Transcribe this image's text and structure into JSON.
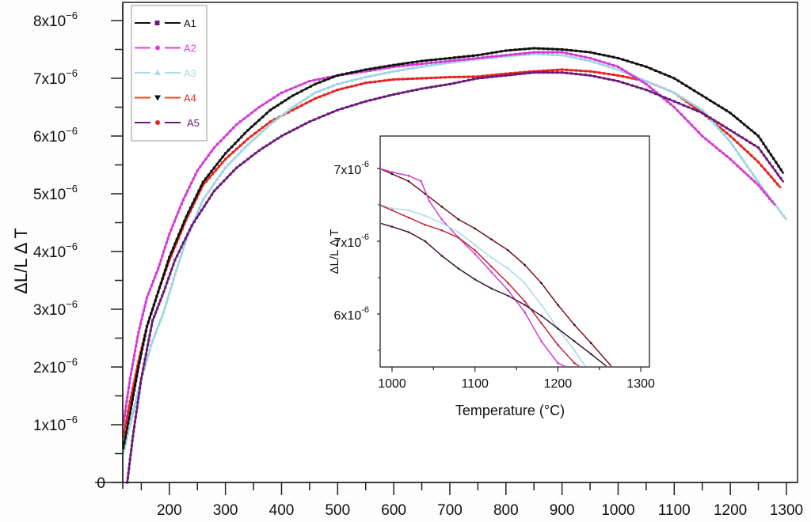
{
  "chart_data": [
    {
      "type": "line",
      "title": "",
      "xlabel": "",
      "ylabel": "ΔL/L Δ T",
      "xlim": [
        117,
        1310
      ],
      "ylim": [
        0,
        8.3
      ],
      "y_unit_scale": "x10^-6",
      "grid": false,
      "legend_position": "top-left",
      "xticks": [
        200,
        300,
        400,
        500,
        600,
        700,
        800,
        900,
        1000,
        1100,
        1200,
        1300
      ],
      "xtick_labels": [
        "200",
        "300",
        "400",
        "500",
        "600",
        "700",
        "800",
        "900",
        "1000",
        "1100",
        "1200",
        "1300"
      ],
      "yticks": [
        0,
        1,
        2,
        3,
        4,
        5,
        6,
        7,
        8
      ],
      "ytick_labels": [
        {
          "base": "0",
          "exp": ""
        },
        {
          "base": "1x10",
          "exp": "−6"
        },
        {
          "base": "2x10",
          "exp": "−6"
        },
        {
          "base": "3x10",
          "exp": "−6"
        },
        {
          "base": "4x10",
          "exp": "−6"
        },
        {
          "base": "5x10",
          "exp": "−6"
        },
        {
          "base": "6x10",
          "exp": "−6"
        },
        {
          "base": "7x10",
          "exp": "−6"
        },
        {
          "base": "8x10",
          "exp": "−6"
        }
      ],
      "series": [
        {
          "name": "A1",
          "line_color": "#111111",
          "marker_color": "#6a1b7a",
          "marker": "square",
          "curve_color": "#6a1b7a",
          "x": [
            125,
            135,
            150,
            170,
            190,
            210,
            240,
            280,
            320,
            360,
            400,
            450,
            500,
            550,
            600,
            650,
            700,
            750,
            800,
            850,
            900,
            950,
            1000,
            1050,
            1100,
            1150,
            1200,
            1250,
            1295
          ],
          "values": [
            0,
            0.8,
            1.8,
            2.8,
            3.3,
            3.85,
            4.45,
            5.05,
            5.45,
            5.75,
            6.0,
            6.25,
            6.45,
            6.6,
            6.72,
            6.82,
            6.9,
            7.0,
            7.05,
            7.1,
            7.1,
            7.05,
            6.95,
            6.8,
            6.6,
            6.4,
            6.1,
            5.8,
            5.2
          ]
        },
        {
          "name": "A2",
          "line_color": "#e040e0",
          "marker_color": "#e040e0",
          "marker": "dot",
          "curve_color": "#d63ad6",
          "x": [
            118,
            130,
            145,
            160,
            180,
            200,
            225,
            250,
            280,
            320,
            360,
            400,
            450,
            500,
            550,
            600,
            650,
            700,
            750,
            800,
            850,
            900,
            950,
            1000,
            1050,
            1100,
            1150,
            1200,
            1250,
            1280
          ],
          "values": [
            1.0,
            1.8,
            2.6,
            3.2,
            3.7,
            4.3,
            4.9,
            5.4,
            5.8,
            6.2,
            6.5,
            6.75,
            6.95,
            7.05,
            7.12,
            7.2,
            7.25,
            7.3,
            7.35,
            7.4,
            7.45,
            7.45,
            7.35,
            7.2,
            6.9,
            6.5,
            6.0,
            5.6,
            5.15,
            4.8
          ]
        },
        {
          "name": "A3",
          "line_color": "#a8dbe6",
          "marker_color": "#a8dbe6",
          "marker": "triangle",
          "curve_color": "#9fd4e2",
          "x": [
            118,
            130,
            150,
            170,
            190,
            210,
            230,
            260,
            300,
            340,
            380,
            420,
            460,
            500,
            550,
            600,
            650,
            700,
            750,
            800,
            850,
            900,
            950,
            1000,
            1050,
            1100,
            1150,
            1200,
            1250,
            1300
          ],
          "values": [
            0.5,
            1.0,
            1.8,
            2.45,
            2.95,
            3.6,
            4.2,
            4.9,
            5.45,
            5.85,
            6.2,
            6.5,
            6.75,
            6.9,
            7.02,
            7.12,
            7.2,
            7.27,
            7.33,
            7.38,
            7.42,
            7.4,
            7.3,
            7.15,
            6.95,
            6.75,
            6.45,
            5.9,
            5.2,
            4.55
          ]
        },
        {
          "name": "A4",
          "line_color": "#e8452d",
          "marker_color": "#111111",
          "marker": "triangle-down",
          "curve_color": "#111111",
          "x": [
            118,
            130,
            145,
            160,
            180,
            200,
            230,
            260,
            300,
            340,
            380,
            420,
            460,
            500,
            550,
            600,
            650,
            700,
            750,
            800,
            850,
            900,
            950,
            1000,
            1050,
            1100,
            1150,
            1200,
            1250,
            1295
          ],
          "values": [
            0.6,
            1.2,
            2.0,
            2.7,
            3.3,
            3.9,
            4.6,
            5.2,
            5.7,
            6.1,
            6.45,
            6.7,
            6.9,
            7.05,
            7.15,
            7.23,
            7.3,
            7.35,
            7.4,
            7.48,
            7.52,
            7.5,
            7.45,
            7.35,
            7.2,
            7.0,
            6.7,
            6.4,
            6.0,
            5.35
          ]
        },
        {
          "name": "A5",
          "line_color": "#6a1b7a",
          "marker_color": "#e8231e",
          "marker": "dot",
          "curve_color": "#e8231e",
          "x": [
            118,
            130,
            145,
            160,
            180,
            200,
            230,
            260,
            300,
            340,
            380,
            420,
            460,
            500,
            550,
            600,
            650,
            700,
            750,
            800,
            850,
            900,
            950,
            1000,
            1050,
            1100,
            1150,
            1200,
            1250,
            1290
          ],
          "values": [
            0.8,
            1.4,
            2.1,
            2.7,
            3.3,
            3.85,
            4.55,
            5.15,
            5.6,
            5.95,
            6.25,
            6.45,
            6.65,
            6.8,
            6.92,
            6.98,
            7.0,
            7.02,
            7.03,
            7.08,
            7.12,
            7.15,
            7.12,
            7.05,
            6.95,
            6.75,
            6.4,
            6.0,
            5.55,
            5.1
          ]
        }
      ]
    },
    {
      "type": "line",
      "title": "",
      "xlabel": "Temperature (°C)",
      "ylabel": "ΔL/L Δ T",
      "xlim": [
        985,
        1310
      ],
      "grid": false,
      "xticks": [
        1000,
        1100,
        1200,
        1300
      ],
      "xtick_labels": [
        "1000",
        "1100",
        "1200",
        "1300"
      ],
      "ytick_labels": [
        {
          "base": "7x10",
          "exp": "-6"
        },
        {
          "base": "7x10",
          "exp": "-6"
        },
        {
          "base": "6x10",
          "exp": "-6"
        }
      ],
      "series": [
        {
          "name": "A4",
          "curve_color": "#7a1020",
          "marker_color": "#111111",
          "x": [
            985,
            1000,
            1020,
            1040,
            1060,
            1080,
            1100,
            1120,
            1140,
            1160,
            1180,
            1200,
            1220,
            1240,
            1267
          ],
          "values": [
            1.0,
            0.97,
            0.93,
            0.86,
            0.79,
            0.72,
            0.67,
            0.61,
            0.55,
            0.47,
            0.37,
            0.25,
            0.14,
            0.04,
            -0.1
          ]
        },
        {
          "name": "A2",
          "curve_color": "#d63ad6",
          "marker_color": "#d63ad6",
          "x": [
            985,
            1000,
            1020,
            1035,
            1045,
            1060,
            1080,
            1100,
            1120,
            1140,
            1160,
            1180,
            1200,
            1215
          ],
          "values": [
            1.0,
            0.98,
            0.96,
            0.93,
            0.82,
            0.72,
            0.62,
            0.53,
            0.43,
            0.33,
            0.21,
            0.05,
            -0.07,
            -0.1
          ]
        },
        {
          "name": "A3",
          "curve_color": "#a8dbe6",
          "marker_color": "#a8dbe6",
          "x": [
            985,
            1000,
            1020,
            1040,
            1060,
            1080,
            1100,
            1120,
            1140,
            1160,
            1180,
            1200,
            1220,
            1235
          ],
          "values": [
            0.8,
            0.78,
            0.77,
            0.74,
            0.7,
            0.65,
            0.58,
            0.51,
            0.45,
            0.37,
            0.25,
            0.12,
            0.0,
            -0.1
          ]
        },
        {
          "name": "A5",
          "curve_color": "#c0263a",
          "marker_color": "#c0263a",
          "x": [
            985,
            1000,
            1020,
            1040,
            1060,
            1080,
            1100,
            1120,
            1140,
            1160,
            1180,
            1200,
            1220,
            1230
          ],
          "values": [
            0.8,
            0.77,
            0.73,
            0.69,
            0.66,
            0.62,
            0.55,
            0.46,
            0.37,
            0.27,
            0.15,
            0.03,
            -0.07,
            -0.1
          ]
        },
        {
          "name": "A1",
          "curve_color": "#3a1a3a",
          "marker_color": "#3a1a3a",
          "x": [
            985,
            1000,
            1020,
            1040,
            1060,
            1080,
            1100,
            1120,
            1140,
            1160,
            1180,
            1200,
            1220,
            1240,
            1262
          ],
          "values": [
            0.7,
            0.68,
            0.65,
            0.6,
            0.52,
            0.45,
            0.39,
            0.34,
            0.3,
            0.25,
            0.19,
            0.12,
            0.05,
            -0.02,
            -0.1
          ]
        }
      ]
    }
  ]
}
